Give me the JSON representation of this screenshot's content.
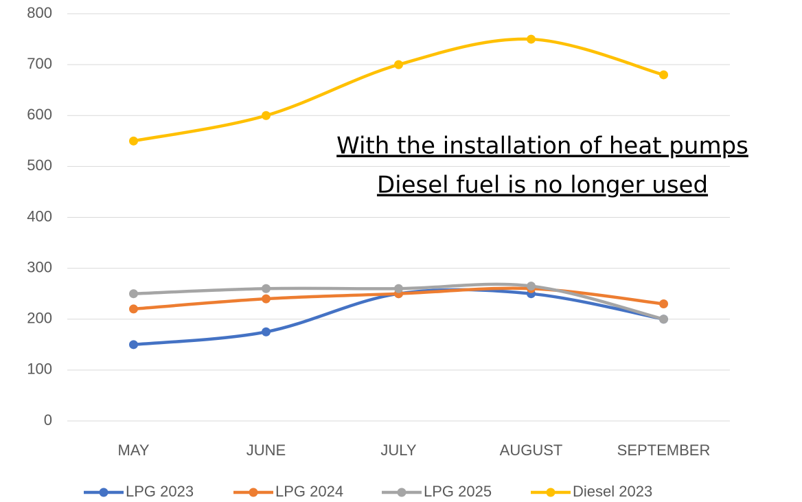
{
  "chart_data": {
    "type": "line",
    "categories": [
      "MAY",
      "JUNE",
      "JULY",
      "AUGUST",
      "SEPTEMBER"
    ],
    "series": [
      {
        "name": "LPG 2023",
        "color": "#4472c4",
        "values": [
          150,
          175,
          250,
          250,
          200
        ]
      },
      {
        "name": "LPG 2024",
        "color": "#ed7d31",
        "values": [
          220,
          240,
          250,
          260,
          230
        ]
      },
      {
        "name": "LPG 2025",
        "color": "#a5a5a5",
        "values": [
          250,
          260,
          260,
          265,
          200
        ]
      },
      {
        "name": "Diesel 2023",
        "color": "#ffc000",
        "values": [
          550,
          600,
          700,
          750,
          680
        ]
      }
    ],
    "ylim": [
      0,
      800
    ],
    "yticks": [
      0,
      100,
      200,
      300,
      400,
      500,
      600,
      700,
      800
    ],
    "grid": true,
    "smooth": true,
    "legend": "bottom",
    "annotation": [
      "With the installation of heat pumps",
      "Diesel fuel is no longer used"
    ]
  }
}
